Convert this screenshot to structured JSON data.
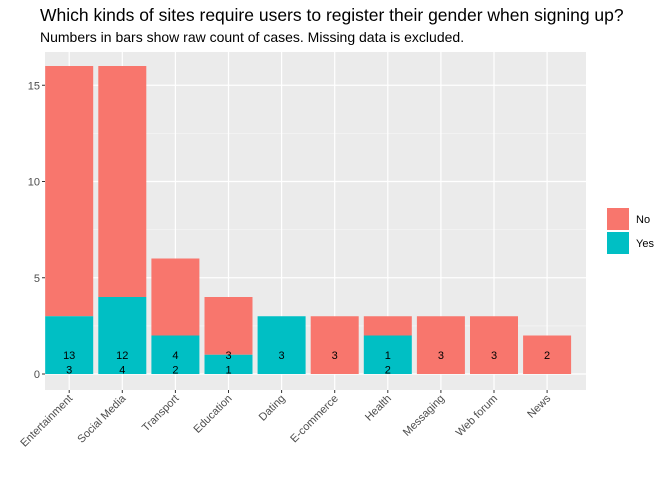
{
  "chart_data": {
    "type": "bar",
    "stacked": true,
    "title": "Which kinds of sites require users to register their gender when signing up?",
    "subtitle": "Numbers in bars show raw count of cases. Missing data is excluded.",
    "xlabel": "",
    "ylabel": "",
    "ylim": [
      0,
      16.8
    ],
    "yticks": [
      0,
      5,
      10,
      15
    ],
    "grid": true,
    "legend_position": "right",
    "categories": [
      "Entertainment",
      "Social Media",
      "Transport",
      "Education",
      "Dating",
      "E-commerce",
      "Health",
      "Messaging",
      "Web forum",
      "News"
    ],
    "series": [
      {
        "name": "Yes",
        "color": "#00BFC4",
        "values": [
          3,
          4,
          2,
          1,
          3,
          0,
          2,
          0,
          0,
          0
        ]
      },
      {
        "name": "No",
        "color": "#F8766D",
        "values": [
          13,
          12,
          4,
          3,
          0,
          3,
          1,
          3,
          3,
          2
        ]
      }
    ],
    "legend": [
      {
        "name": "No",
        "color": "#F8766D"
      },
      {
        "name": "Yes",
        "color": "#00BFC4"
      }
    ]
  }
}
